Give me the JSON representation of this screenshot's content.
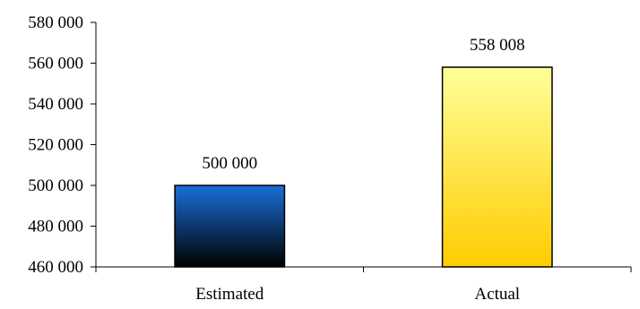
{
  "chart_data": {
    "type": "bar",
    "title": "",
    "xlabel": "",
    "ylabel": "",
    "ylim": [
      460000,
      580000
    ],
    "yticks": [
      460000,
      480000,
      500000,
      520000,
      540000,
      560000,
      580000
    ],
    "ytick_labels": [
      "460 000",
      "480 000",
      "500 000",
      "520 000",
      "540 000",
      "560 000",
      "580 000"
    ],
    "categories": [
      "Estimated",
      "Actual"
    ],
    "values": [
      500000,
      558008
    ],
    "data_labels": [
      "500 000",
      "558 008"
    ],
    "bar_gradients": [
      {
        "top": "#1a6fd8",
        "bottom": "#000000"
      },
      {
        "top": "#ffff99",
        "bottom": "#ffcc00"
      }
    ],
    "grid": false,
    "legend": "none"
  }
}
